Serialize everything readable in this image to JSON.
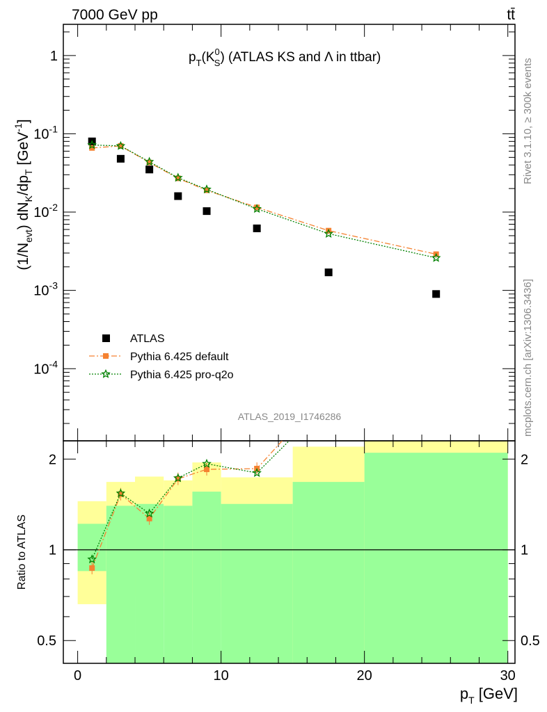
{
  "header": {
    "energy_label": "7000 GeV pp",
    "process_label": "tt̄"
  },
  "side_labels": {
    "rivet": "Rivet 3.1.10, ≥ 300k events",
    "mcplots": "mcplots.cern.ch [arXiv:1306.3436]"
  },
  "analysis_id": "ATLAS_2019_I1746286",
  "chart_data": [
    {
      "type": "scatter",
      "panel": "main",
      "title_parts": {
        "p": "p",
        "sub_t": "T",
        "open": "(K",
        "sup0": "0",
        "subS": "S",
        "rest": ") (ATLAS KS and Λ in ttbar)"
      },
      "ylabel_parts": {
        "a": "(1/N",
        "evt": "evt",
        "b": ") dN",
        "k": "K",
        "c": "/dp",
        "t": "T",
        "d": " [GeV",
        "e": "-1",
        "f": "]"
      },
      "yscale": "log",
      "ylim": [
        1.2e-05,
        2.5
      ],
      "xlim": [
        -1,
        30.5
      ],
      "ytick_labels": [
        {
          "base": "10",
          "exp": "-4",
          "value": 0.0001
        },
        {
          "base": "10",
          "exp": "-3",
          "value": 0.001
        },
        {
          "base": "10",
          "exp": "-2",
          "value": 0.01
        },
        {
          "base": "10",
          "exp": "-1",
          "value": 0.1
        },
        {
          "base": "1",
          "exp": "",
          "value": 1
        }
      ],
      "series": [
        {
          "name": "ATLAS",
          "color": "#000000",
          "marker": "square",
          "x": [
            1,
            3,
            5,
            7,
            9,
            12.5,
            17.5,
            25
          ],
          "y": [
            0.08,
            0.048,
            0.035,
            0.016,
            0.0103,
            0.0062,
            0.0017,
            0.0009
          ]
        },
        {
          "name": "Pythia 6.425 default",
          "color": "#f58231",
          "marker": "square-small",
          "line": "dashdot",
          "x": [
            1,
            3,
            5,
            7,
            9,
            12.5,
            17.5,
            25
          ],
          "y": [
            0.066,
            0.07,
            0.043,
            0.027,
            0.019,
            0.0115,
            0.0058,
            0.0029
          ]
        },
        {
          "name": "Pythia 6.425 pro-q2o",
          "color": "#008000",
          "marker": "star",
          "line": "dotted",
          "x": [
            1,
            3,
            5,
            7,
            9,
            12.5,
            17.5,
            25
          ],
          "y": [
            0.072,
            0.07,
            0.044,
            0.0275,
            0.0195,
            0.011,
            0.0053,
            0.0026
          ]
        }
      ]
    },
    {
      "type": "line",
      "panel": "ratio",
      "ylabel": "Ratio to ATLAS",
      "yscale": "log",
      "ylim": [
        0.42,
        2.3
      ],
      "xlim": [
        -1,
        30.5
      ],
      "xlabel_parts": {
        "p": "p",
        "sub": "T",
        "rest": " [GeV]"
      },
      "xtick_labels": [
        "0",
        "10",
        "20",
        "30"
      ],
      "xtick_values": [
        0,
        10,
        20,
        30
      ],
      "ytick_labels": [
        "0.5",
        "1",
        "2"
      ],
      "ytick_values": [
        0.5,
        1,
        2
      ],
      "bands": {
        "edges": [
          0,
          2,
          4,
          6,
          8,
          10,
          15,
          20,
          30
        ],
        "yellow_low": [
          0.66,
          0.73,
          0.7,
          0.72,
          0.54,
          0.7,
          0.3,
          0.3
        ],
        "yellow_high": [
          1.45,
          1.68,
          1.75,
          1.7,
          1.95,
          1.74,
          2.2,
          2.5
        ],
        "green_low": [
          0.85,
          0.3,
          0.3,
          0.3,
          0.3,
          0.3,
          0.3,
          0.3
        ],
        "green_high": [
          1.22,
          1.4,
          1.42,
          1.4,
          1.56,
          1.42,
          1.68,
          2.1
        ]
      },
      "series": [
        {
          "name": "Pythia 6.425 default",
          "color": "#f58231",
          "x": [
            1,
            3,
            5,
            7,
            9,
            12.5,
            17.5
          ],
          "y": [
            0.87,
            1.53,
            1.27,
            1.72,
            1.85,
            1.86,
            3.4
          ]
        },
        {
          "name": "Pythia 6.425 pro-q2o",
          "color": "#008000",
          "x": [
            1,
            3,
            5,
            7,
            9,
            12.5,
            17.5
          ],
          "y": [
            0.93,
            1.54,
            1.32,
            1.73,
            1.93,
            1.8,
            3.1
          ]
        }
      ]
    }
  ]
}
